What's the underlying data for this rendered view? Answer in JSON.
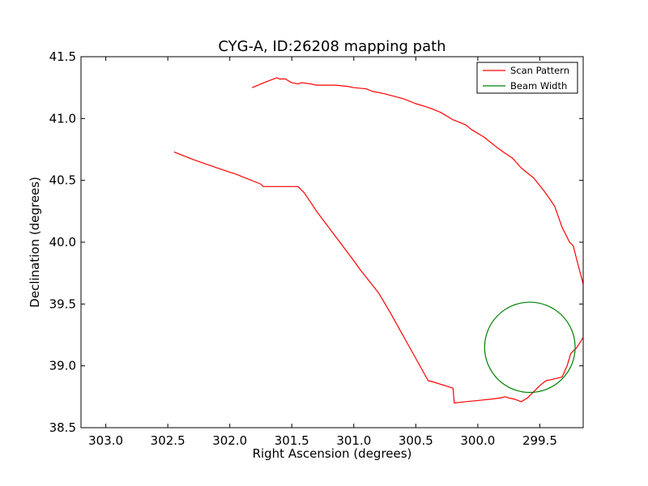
{
  "chart_data": {
    "type": "line",
    "title": "CYG-A, ID:26208 mapping path",
    "xlabel": "Right Ascension (degrees)",
    "ylabel": "Declination (degrees)",
    "xlim": [
      303.2,
      299.15
    ],
    "ylim": [
      38.5,
      41.5
    ],
    "x_ticks": [
      303.0,
      302.5,
      302.0,
      301.5,
      301.0,
      300.5,
      300.0,
      299.5
    ],
    "x_tick_labels": [
      "303.0",
      "302.5",
      "302.0",
      "301.5",
      "301.0",
      "300.5",
      "300.0",
      "299.5"
    ],
    "y_ticks": [
      38.5,
      39.0,
      39.5,
      40.0,
      40.5,
      41.0,
      41.5
    ],
    "y_tick_labels": [
      "38.5",
      "39.0",
      "39.5",
      "40.0",
      "40.5",
      "41.0",
      "41.5"
    ],
    "grid": false,
    "legend": {
      "position": "top-right",
      "entries": [
        "Scan Pattern",
        "Beam Width"
      ]
    },
    "series": [
      {
        "name": "Scan Pattern",
        "color": "#ff0000",
        "x": [
          302.45,
          302.3,
          302.1,
          301.95,
          301.75,
          301.73,
          301.45,
          301.4,
          301.3,
          301.15,
          301.0,
          300.95,
          300.8,
          300.7,
          300.55,
          300.4,
          300.36,
          300.2,
          300.19,
          300.1,
          300.0,
          299.9,
          299.82,
          299.78,
          299.75,
          299.7,
          299.65,
          299.6,
          299.55,
          299.5,
          299.45,
          299.4,
          299.32,
          299.28,
          299.25,
          299.2,
          299.15,
          299.15,
          299.15,
          299.16,
          299.2,
          299.23,
          299.26,
          299.3,
          299.32,
          299.38,
          299.42,
          299.47,
          299.55,
          299.65,
          299.72,
          299.78,
          299.85,
          299.95,
          300.05,
          300.1,
          300.2,
          300.3,
          300.4,
          300.5,
          300.6,
          300.75,
          300.85,
          300.9,
          301.0,
          301.05,
          301.15,
          301.3,
          301.35,
          301.42,
          301.45,
          301.5,
          301.52,
          301.55,
          301.6,
          301.62,
          301.7,
          301.82
        ],
        "y": [
          40.73,
          40.67,
          40.6,
          40.55,
          40.47,
          40.45,
          40.45,
          40.4,
          40.25,
          40.05,
          39.85,
          39.78,
          39.59,
          39.42,
          39.15,
          38.88,
          38.87,
          38.82,
          38.7,
          38.71,
          38.72,
          38.73,
          38.74,
          38.75,
          38.74,
          38.73,
          38.71,
          38.74,
          38.79,
          38.84,
          38.88,
          38.89,
          38.91,
          39.0,
          39.1,
          39.15,
          39.23,
          39.45,
          39.66,
          39.7,
          39.85,
          39.97,
          40.0,
          40.08,
          40.12,
          40.29,
          40.35,
          40.42,
          40.52,
          40.6,
          40.68,
          40.72,
          40.77,
          40.85,
          40.91,
          40.95,
          40.99,
          41.05,
          41.09,
          41.12,
          41.16,
          41.2,
          41.22,
          41.24,
          41.25,
          41.26,
          41.27,
          41.27,
          41.28,
          41.29,
          41.28,
          41.29,
          41.3,
          41.32,
          41.32,
          41.33,
          41.3,
          41.25
        ]
      },
      {
        "name": "Beam Width",
        "color": "#008000",
        "shape": "circle",
        "center": [
          299.58,
          39.15
        ],
        "radius_deg": 0.365
      }
    ]
  }
}
